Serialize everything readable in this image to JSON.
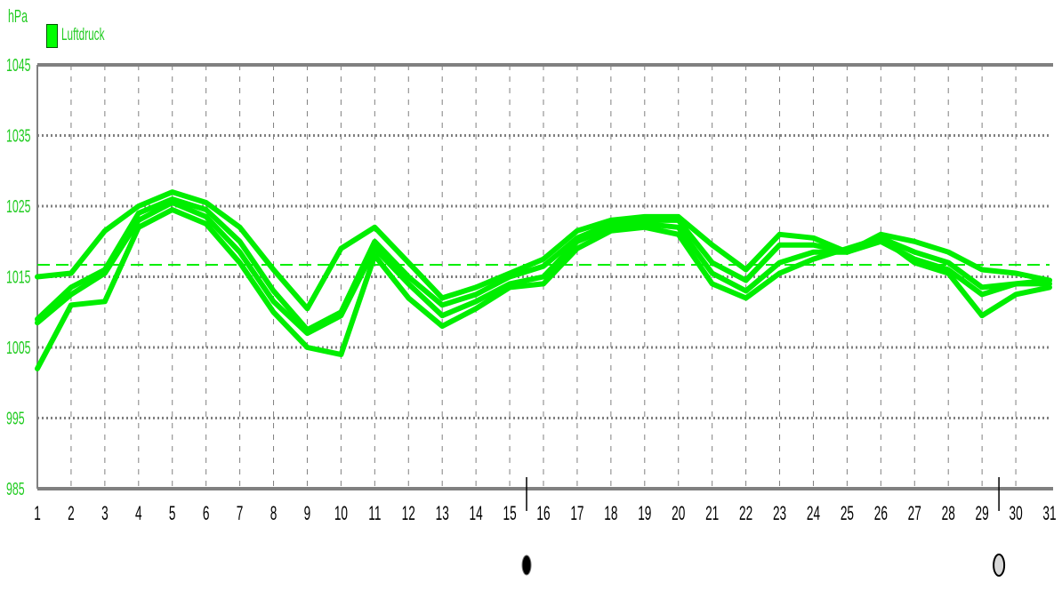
{
  "colors": {
    "series": "#00ee00",
    "legend_text": "#22cc22",
    "axis": "#808080",
    "grid": "#808080",
    "reference_line": "#00ee00"
  },
  "chart_data": {
    "type": "line",
    "unit_label": "hPa",
    "legend": [
      "Luftdruck"
    ],
    "legend_placement": "top-left",
    "ylabel": "hPa",
    "xlabel": "",
    "ylim": [
      985,
      1045
    ],
    "yticks": [
      985,
      995,
      1005,
      1015,
      1025,
      1035,
      1045
    ],
    "xlim": [
      1,
      31
    ],
    "xticks": [
      1,
      2,
      3,
      4,
      5,
      6,
      7,
      8,
      9,
      10,
      11,
      12,
      13,
      14,
      15,
      16,
      17,
      18,
      19,
      20,
      21,
      22,
      23,
      24,
      25,
      26,
      27,
      28,
      29,
      30,
      31
    ],
    "grid": true,
    "reference_line": {
      "y": 1016.7,
      "style": "dashed"
    },
    "markers": [
      {
        "x": 15.5,
        "icon": "moon-new-icon"
      },
      {
        "x": 29.5,
        "icon": "moon-full-icon"
      }
    ],
    "series": [
      {
        "x": [
          1,
          2,
          3,
          4,
          5,
          6,
          7,
          8,
          9,
          10,
          11,
          12,
          13,
          14,
          15,
          16,
          17,
          18,
          19,
          20,
          21,
          22,
          23,
          24,
          25,
          26,
          27,
          28,
          29,
          30,
          31
        ],
        "values": [
          1002,
          1011,
          1011.5,
          1022,
          1024.5,
          1022.5,
          1017,
          1010,
          1005,
          1004,
          1018,
          1012,
          1008,
          1010.5,
          1013.5,
          1014,
          1019,
          1021.5,
          1022,
          1021,
          1014,
          1012,
          1015.5,
          1017.5,
          1019,
          1020.5,
          1017,
          1015.5,
          1009.5,
          1012.5,
          1013.5
        ]
      },
      {
        "x": [
          1,
          2,
          3,
          4,
          5,
          6,
          7,
          8,
          9,
          10,
          11,
          12,
          13,
          14,
          15,
          16,
          17,
          18,
          19,
          20,
          21,
          22,
          23,
          24,
          25,
          26,
          27,
          28,
          29,
          30,
          31
        ],
        "values": [
          1008.5,
          1012.5,
          1015.5,
          1023,
          1025.5,
          1023.5,
          1018.5,
          1011.5,
          1007,
          1009.5,
          1019,
          1014,
          1009.5,
          1011.5,
          1014,
          1015,
          1020,
          1022,
          1022.5,
          1022,
          1015.5,
          1013,
          1017,
          1018.5,
          1018.5,
          1020,
          1017.5,
          1016,
          1012.5,
          1014,
          1014
        ]
      },
      {
        "x": [
          1,
          2,
          3,
          4,
          5,
          6,
          7,
          8,
          9,
          10,
          11,
          12,
          13,
          14,
          15,
          16,
          17,
          18,
          19,
          20,
          21,
          22,
          23,
          24,
          25,
          26,
          27,
          28,
          29,
          30,
          31
        ],
        "values": [
          1009,
          1013.5,
          1016,
          1024,
          1026,
          1024.5,
          1020,
          1013,
          1007.5,
          1010,
          1020,
          1015,
          1011,
          1012.5,
          1015,
          1016.5,
          1020.5,
          1022.5,
          1023,
          1023,
          1017,
          1014.5,
          1019.5,
          1019.5,
          1018.5,
          1020.5,
          1018.5,
          1017,
          1013.5,
          1014,
          1014.5
        ]
      },
      {
        "x": [
          1,
          2,
          3,
          4,
          5,
          6,
          7,
          8,
          9,
          10,
          11,
          12,
          13,
          14,
          15,
          16,
          17,
          18,
          19,
          20,
          21,
          22,
          23,
          24,
          25,
          26,
          27,
          28,
          29,
          30,
          31
        ],
        "values": [
          1015,
          1015.5,
          1021.5,
          1025,
          1027,
          1025.5,
          1022,
          1016,
          1010.5,
          1019,
          1022,
          1017,
          1012,
          1013.5,
          1015.5,
          1017.5,
          1021.5,
          1023,
          1023.5,
          1023.5,
          1019.5,
          1016,
          1021,
          1020.5,
          1018.5,
          1021,
          1020,
          1018.5,
          1016,
          1015.5,
          1014.5
        ]
      }
    ]
  }
}
